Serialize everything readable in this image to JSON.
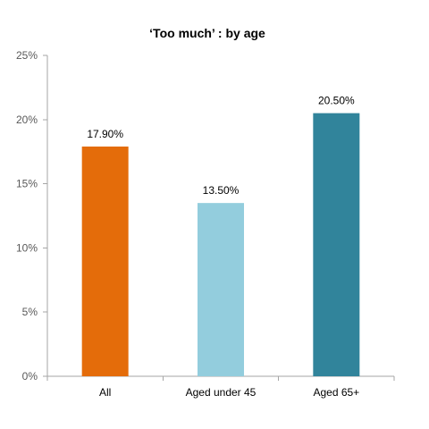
{
  "chart_data": {
    "type": "bar",
    "title": "‘Too much’ : by age",
    "xlabel": "",
    "ylabel": "",
    "categories": [
      "All",
      "Aged under 45",
      "Aged 65+"
    ],
    "values": [
      17.9,
      13.5,
      20.5
    ],
    "data_labels": [
      "17.90%",
      "13.50%",
      "20.50%"
    ],
    "bar_colors": [
      "#E46C0A",
      "#93CDDD",
      "#31849B"
    ],
    "ylim": [
      0,
      25
    ],
    "y_ticks": [
      0,
      5,
      10,
      15,
      20,
      25
    ],
    "y_tick_labels": [
      "0%",
      "5%",
      "10%",
      "15%",
      "20%",
      "25%"
    ],
    "grid": false,
    "legend": "none"
  }
}
